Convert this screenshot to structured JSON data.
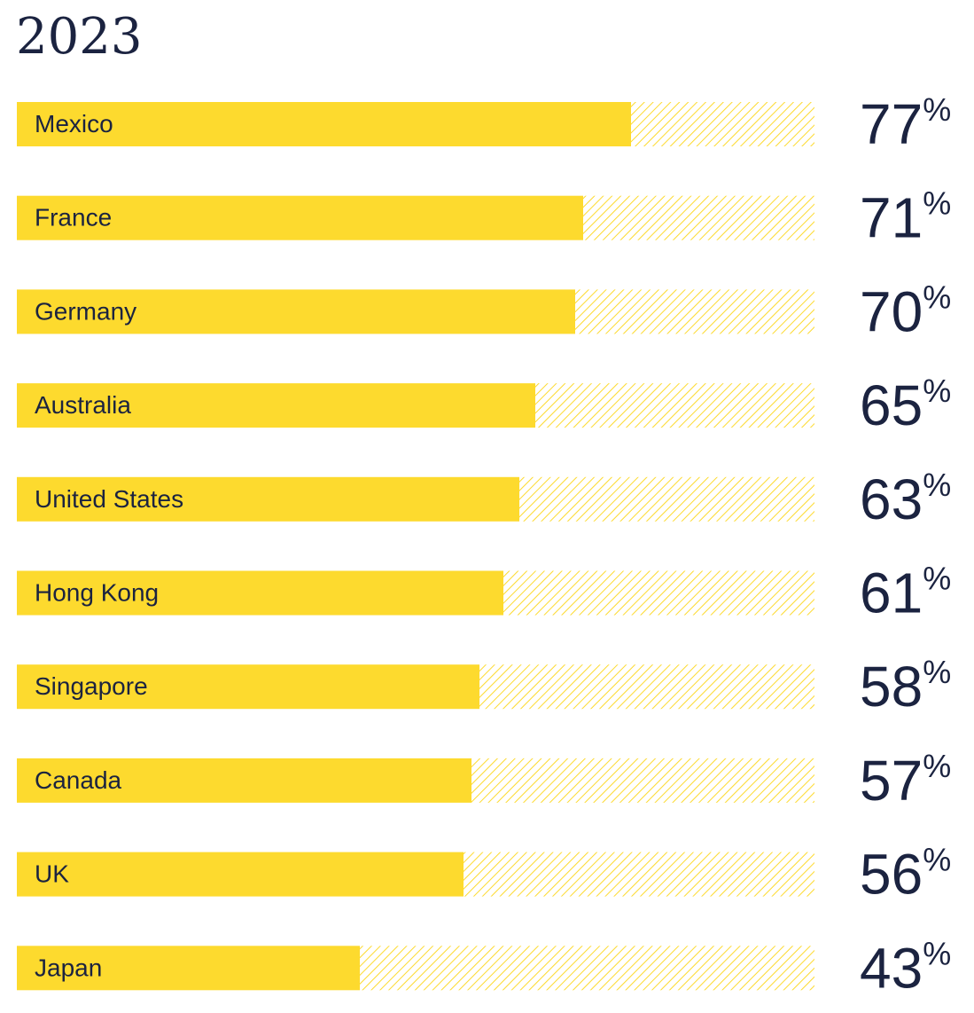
{
  "chart_data": {
    "type": "bar",
    "orientation": "horizontal",
    "title": "2023",
    "categories": [
      "Mexico",
      "France",
      "Germany",
      "Australia",
      "United States",
      "Hong Kong",
      "Singapore",
      "Canada",
      "UK",
      "Japan"
    ],
    "values": [
      77,
      71,
      70,
      65,
      63,
      61,
      58,
      57,
      56,
      43
    ],
    "value_labels": [
      "77",
      "71",
      "70",
      "65",
      "63",
      "61",
      "58",
      "57",
      "56",
      "43"
    ],
    "unit_symbol": "%",
    "xlim": [
      0,
      100
    ],
    "grid": false,
    "legend": "none"
  },
  "colors": {
    "bar": "#FDDA2E",
    "remainder_hatch": "#FDDA2E",
    "label_text": "#1B2340",
    "value_text": "#1B2340",
    "title_text": "#1B2340",
    "background": "#FFFFFF"
  }
}
